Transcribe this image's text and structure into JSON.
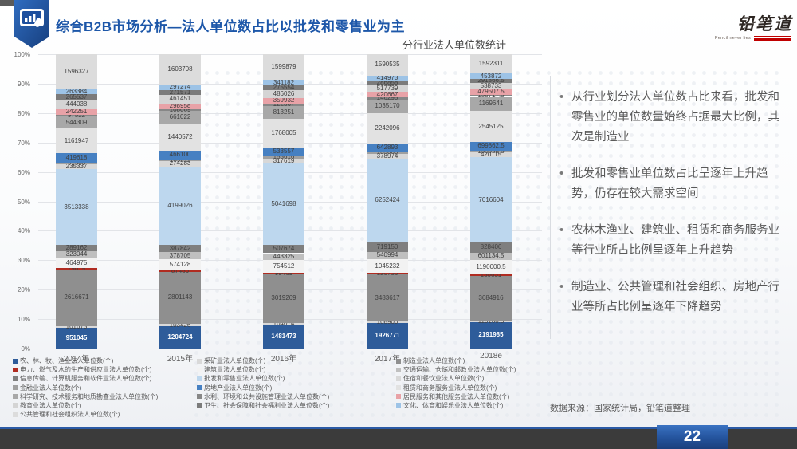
{
  "header": {
    "title": "综合B2B市场分析—法人单位数占比以批发和零售业为主",
    "logo_text": "铅笔道",
    "logo_tagline": "Pencil never lies"
  },
  "chart_data": {
    "type": "bar",
    "subtype": "100%-stacked-column",
    "title": "分行业法人单位数统计",
    "categories": [
      "2014年",
      "2015年",
      "2016年",
      "2017年",
      "2018e"
    ],
    "y_ticks": [
      "100%",
      "90%",
      "80%",
      "70%",
      "60%",
      "50%",
      "40%",
      "30%",
      "20%",
      "10%",
      "0%"
    ],
    "ylim": [
      0,
      1
    ],
    "grid": true,
    "legend_position": "bottom",
    "series": [
      {
        "name": "农、林、牧、渔业法人单位数(个)",
        "color": "#2e5c9a",
        "values": [
          951045,
          1204724,
          1481473,
          1926771,
          2191985
        ]
      },
      {
        "name": "采矿业法人单位数(个)",
        "color": "#d9d9d9",
        "values": [
          101673,
          103426,
          104074,
          108900,
          110100.5
        ]
      },
      {
        "name": "制造业法人单位数(个)",
        "color": "#8f8f8f",
        "values": [
          2616671,
          2801143,
          3019269,
          3483617,
          3684916
        ]
      },
      {
        "name": "电力、燃气及水的生产和供应业法人单位数(个)",
        "color": "#b02b20",
        "values": [
          79679,
          87486,
          99469,
          120736,
          130631
        ]
      },
      {
        "name": "建筑业法人单位数(个)",
        "color": "#f2f2f2",
        "values": [
          464975,
          574128,
          754512,
          1045232,
          1190000.5
        ]
      },
      {
        "name": "交通运输、仓储和邮政业法人单位数(个)",
        "color": "#bfbfbf",
        "values": [
          323044,
          378705,
          443325,
          540994,
          601134.5
        ]
      },
      {
        "name": "信息传输、计算机服务和软件业法人单位数(个)",
        "color": "#7f7f7f",
        "values": [
          289162,
          387842,
          507674,
          719150,
          828406
        ]
      },
      {
        "name": "批发和零售业法人单位数(个)",
        "color": "#bdd7ee",
        "values": [
          3513338,
          4199026,
          5041698,
          6252424,
          7016604
        ]
      },
      {
        "name": "住宿和餐饮业法人单位数(个)",
        "color": "#d8d8d8",
        "values": [
          235337,
          274283,
          317619,
          378974,
          420115
        ]
      },
      {
        "name": "金融业法人单位数(个)",
        "color": "#a0a0a0",
        "values": [
          91583,
          109211,
          153616,
          135068,
          150538.5
        ]
      },
      {
        "name": "房地产业法人单位数(个)",
        "color": "#4680c2",
        "values": [
          419618,
          466100,
          533557,
          642893,
          699862.5
        ]
      },
      {
        "name": "租赁和商务服务业法人单位数(个)",
        "color": "#e2e2e2",
        "values": [
          1161947,
          1440572,
          1768005,
          2242096,
          2545125
        ]
      },
      {
        "name": "科学研究、技术服务和地质勘查业法人单位数(个)",
        "color": "#a8a8a8",
        "values": [
          544309,
          661022,
          813251,
          1035170,
          1169641
        ]
      },
      {
        "name": "水利、环境和公共设施管理业法人单位数(个)",
        "color": "#878787",
        "values": [
          97522,
          108069,
          122367,
          146295,
          158717.5
        ]
      },
      {
        "name": "居民服务和其他服务业法人单位数(个)",
        "color": "#e8a2a7",
        "values": [
          242251,
          298958,
          359932,
          420667,
          479507.5
        ]
      },
      {
        "name": "教育业法人单位数(个)",
        "color": "#d4d4d4",
        "values": [
          444038,
          461451,
          486026,
          517739,
          538733
        ]
      },
      {
        "name": "卫生、社会保障和社会福利业法人单位数(个)",
        "color": "#7b7b7b",
        "values": [
          265537,
          271571,
          275554,
          286858,
          291866.5
        ]
      },
      {
        "name": "文化、体育和娱乐业法人单位数(个)",
        "color": "#9dc3e6",
        "values": [
          263384,
          297274,
          341182,
          414973,
          453872
        ]
      },
      {
        "name": "公共管理和社会组织法人单位数(个)",
        "color": "#dcdcdc",
        "values": [
          1596327,
          1603708,
          1599879,
          1590535,
          1592311
        ]
      }
    ],
    "legend_columns": [
      [
        0,
        3,
        6,
        9,
        12,
        15,
        18
      ],
      [
        1,
        4,
        7,
        10,
        13,
        16
      ],
      [
        2,
        5,
        8,
        11,
        14,
        17
      ]
    ]
  },
  "insights": {
    "bullets": [
      "从行业划分法人单位数占比来看，批发和零售业的单位数量始终占据最大比例，其次是制造业",
      "批发和零售业单位数占比呈逐年上升趋势，仍存在较大需求空间",
      "农林木渔业、建筑业、租赁和商务服务业等行业所占比例呈逐年上升趋势",
      "制造业、公共管理和社会组织、房地产行业等所占比例呈逐年下降趋势"
    ]
  },
  "footer": {
    "source": "数据来源：国家统计局，铅笔道整理",
    "page_number": "22"
  },
  "colors": {
    "title_blue": "#1d57a9",
    "logo_red": "#c00000",
    "footer_bar": "#3b3b3b",
    "footer_blue": "#2b5aa6"
  }
}
